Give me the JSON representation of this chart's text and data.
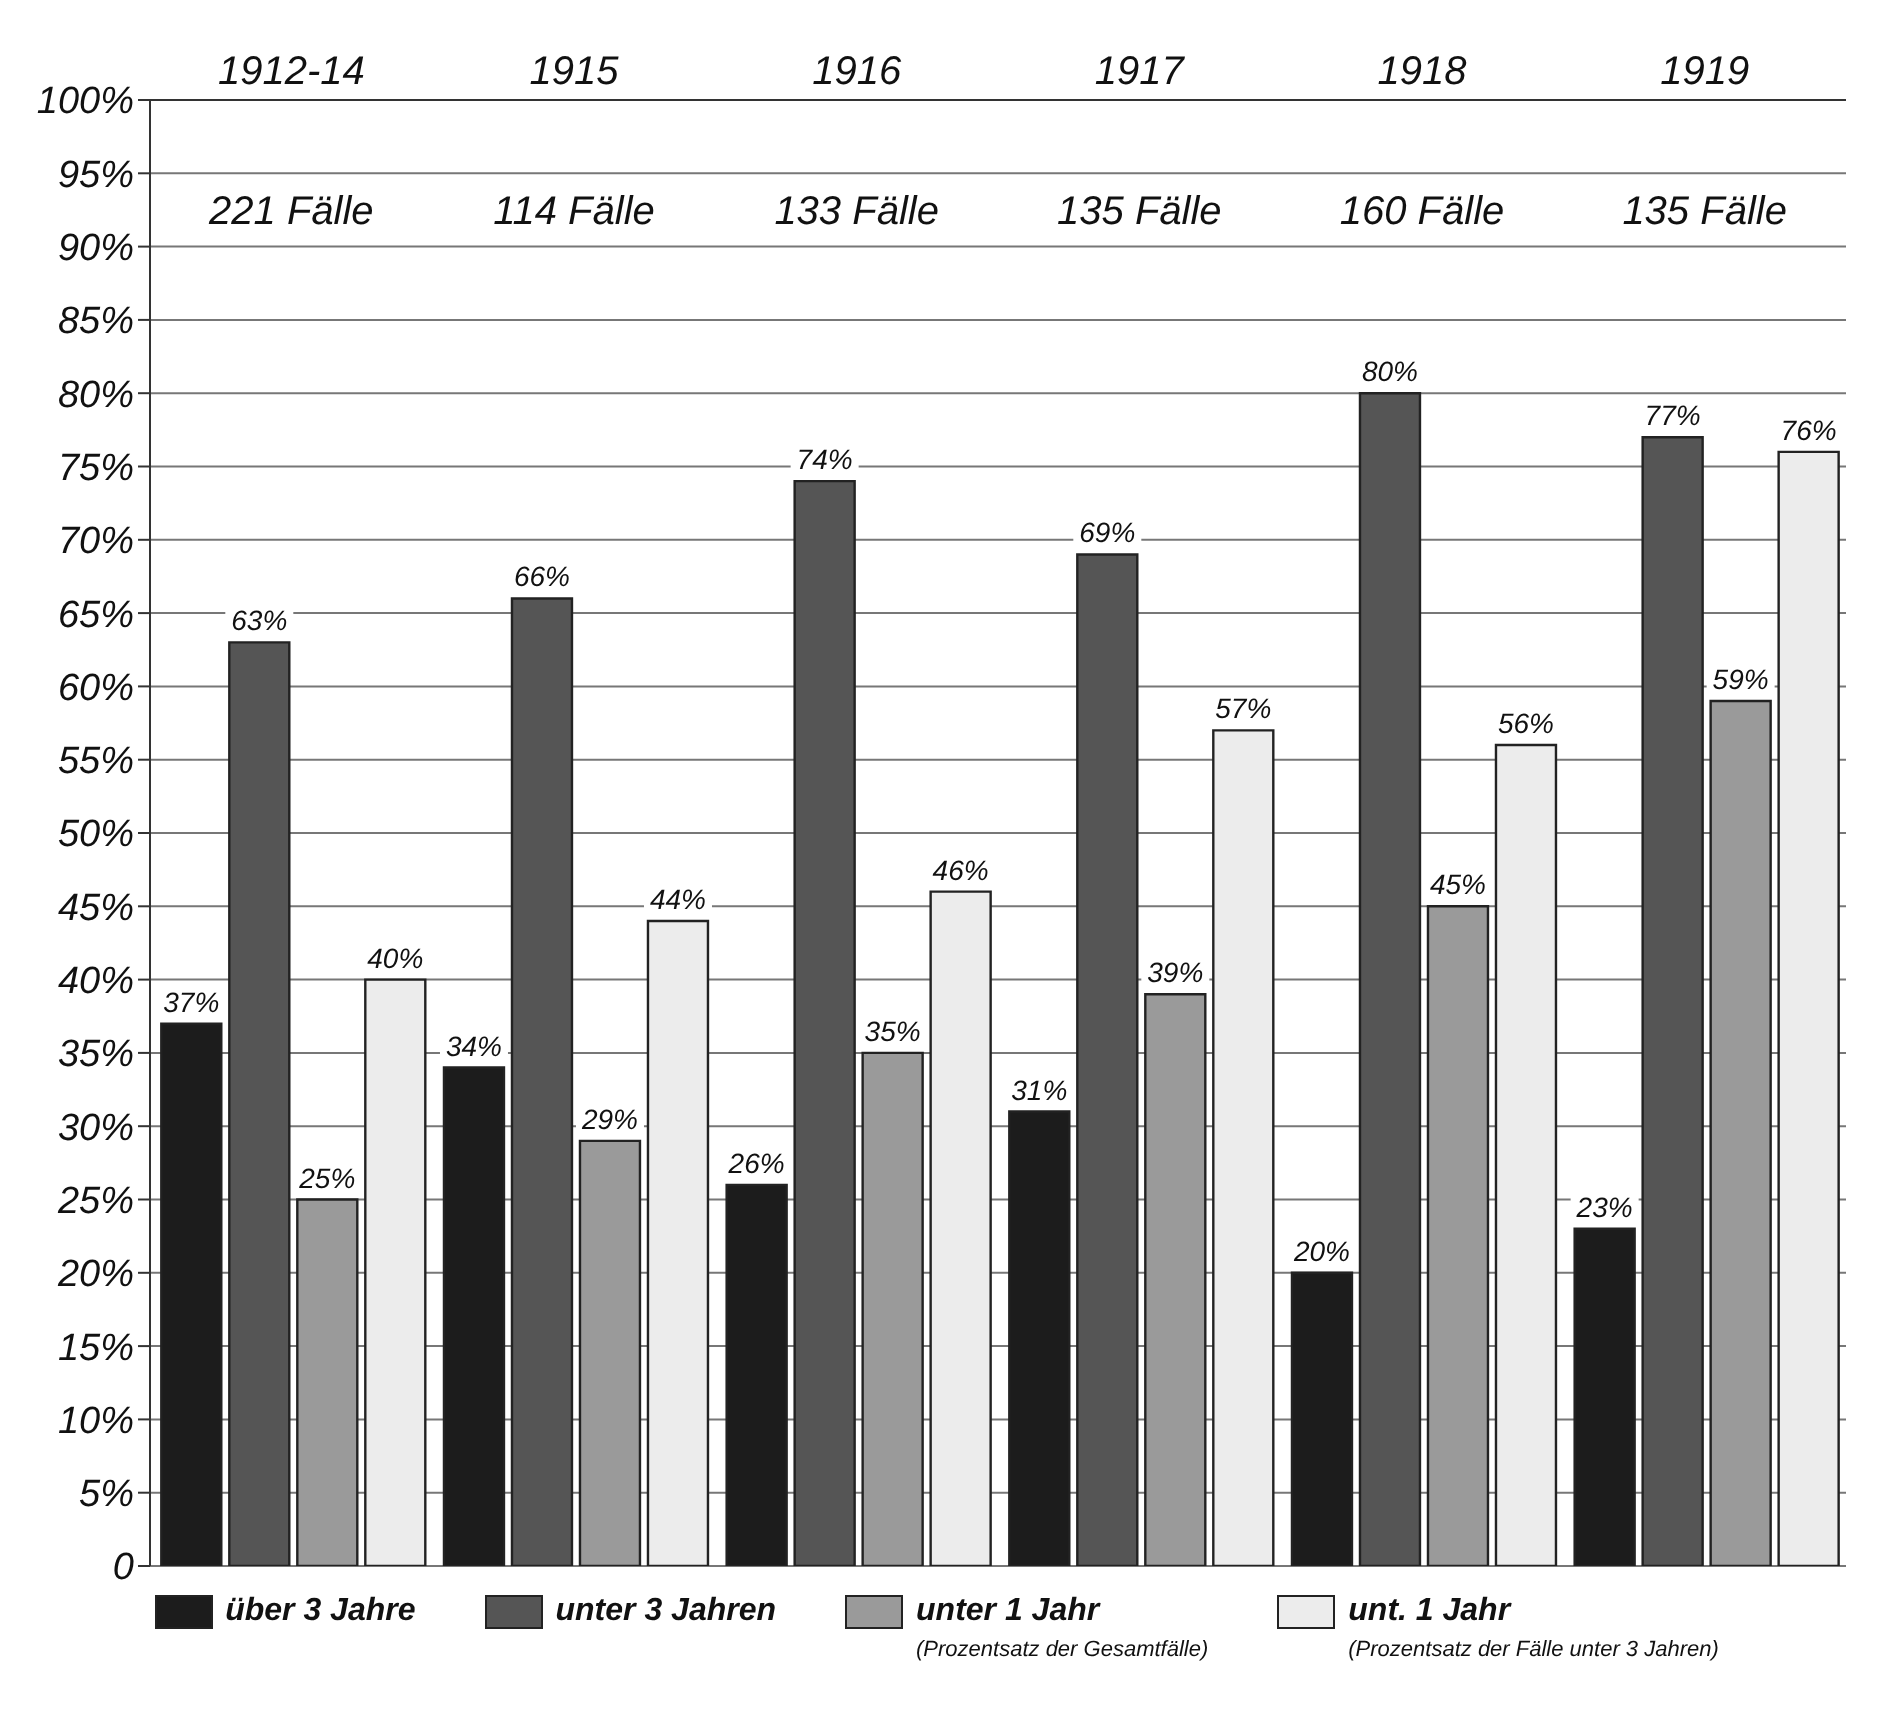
{
  "chart_data": {
    "type": "bar",
    "categories": [
      "1912-14",
      "1915",
      "1916",
      "1917",
      "1918",
      "1919"
    ],
    "series": [
      {
        "name": "über 3 Jahre",
        "color": "#1c1c1c",
        "values": [
          37,
          34,
          26,
          31,
          20,
          23
        ],
        "value_labels": [
          "37%",
          "34%",
          "26%",
          "31%",
          "20%",
          "23%"
        ]
      },
      {
        "name": "unter 3 Jahren",
        "color": "#555555",
        "values": [
          63,
          66,
          74,
          69,
          80,
          77
        ],
        "value_labels": [
          "63%",
          "66%",
          "74%",
          "69%",
          "80%",
          "77%"
        ]
      },
      {
        "name": "unter 1 Jahr (Prozentsatz der Gesamtfälle)",
        "color": "#9a9a9a",
        "values": [
          25,
          29,
          35,
          39,
          45,
          59
        ],
        "value_labels": [
          "25%",
          "29%",
          "35%",
          "39%",
          "45%",
          "59%"
        ]
      },
      {
        "name": "unt. 1 Jahr (Prozentsatz der Fälle unter 3 Jahren)",
        "color": "#ececec",
        "values": [
          40,
          44,
          46,
          57,
          56,
          76
        ],
        "value_labels": [
          "40%",
          "44%",
          "46%",
          "57%",
          "56%",
          "76%"
        ]
      }
    ],
    "ylim": [
      0,
      100
    ],
    "yticks": [
      0,
      {
        "value": 5,
        "label": "5%"
      },
      {
        "value": 10,
        "label": "10%"
      },
      {
        "value": 15,
        "label": "15%"
      },
      {
        "value": 20,
        "label": "20%"
      },
      {
        "value": 25,
        "label": "25%"
      },
      {
        "value": 30,
        "label": "30%"
      },
      {
        "value": 35,
        "label": "35%"
      },
      {
        "value": 40,
        "label": "40%"
      },
      {
        "value": 45,
        "label": "45%"
      },
      {
        "value": 50,
        "label": "50%"
      },
      {
        "value": 55,
        "label": "55%"
      },
      {
        "value": 60,
        "label": "60%"
      },
      {
        "value": 65,
        "label": "65%"
      },
      {
        "value": 70,
        "label": "70%"
      },
      {
        "value": 75,
        "label": "75%"
      },
      {
        "value": 80,
        "label": "80%"
      },
      {
        "value": 85,
        "label": "85%"
      },
      {
        "value": 90,
        "label": "90%"
      },
      {
        "value": 95,
        "label": "95%"
      },
      {
        "value": 100,
        "label": "100%"
      }
    ],
    "annotations": [
      "221 Fälle",
      "114 Fälle",
      "133 Fälle",
      "135 Fälle",
      "160 Fälle",
      "135 Fälle"
    ],
    "grid": "y",
    "legend": "bottom"
  }
}
